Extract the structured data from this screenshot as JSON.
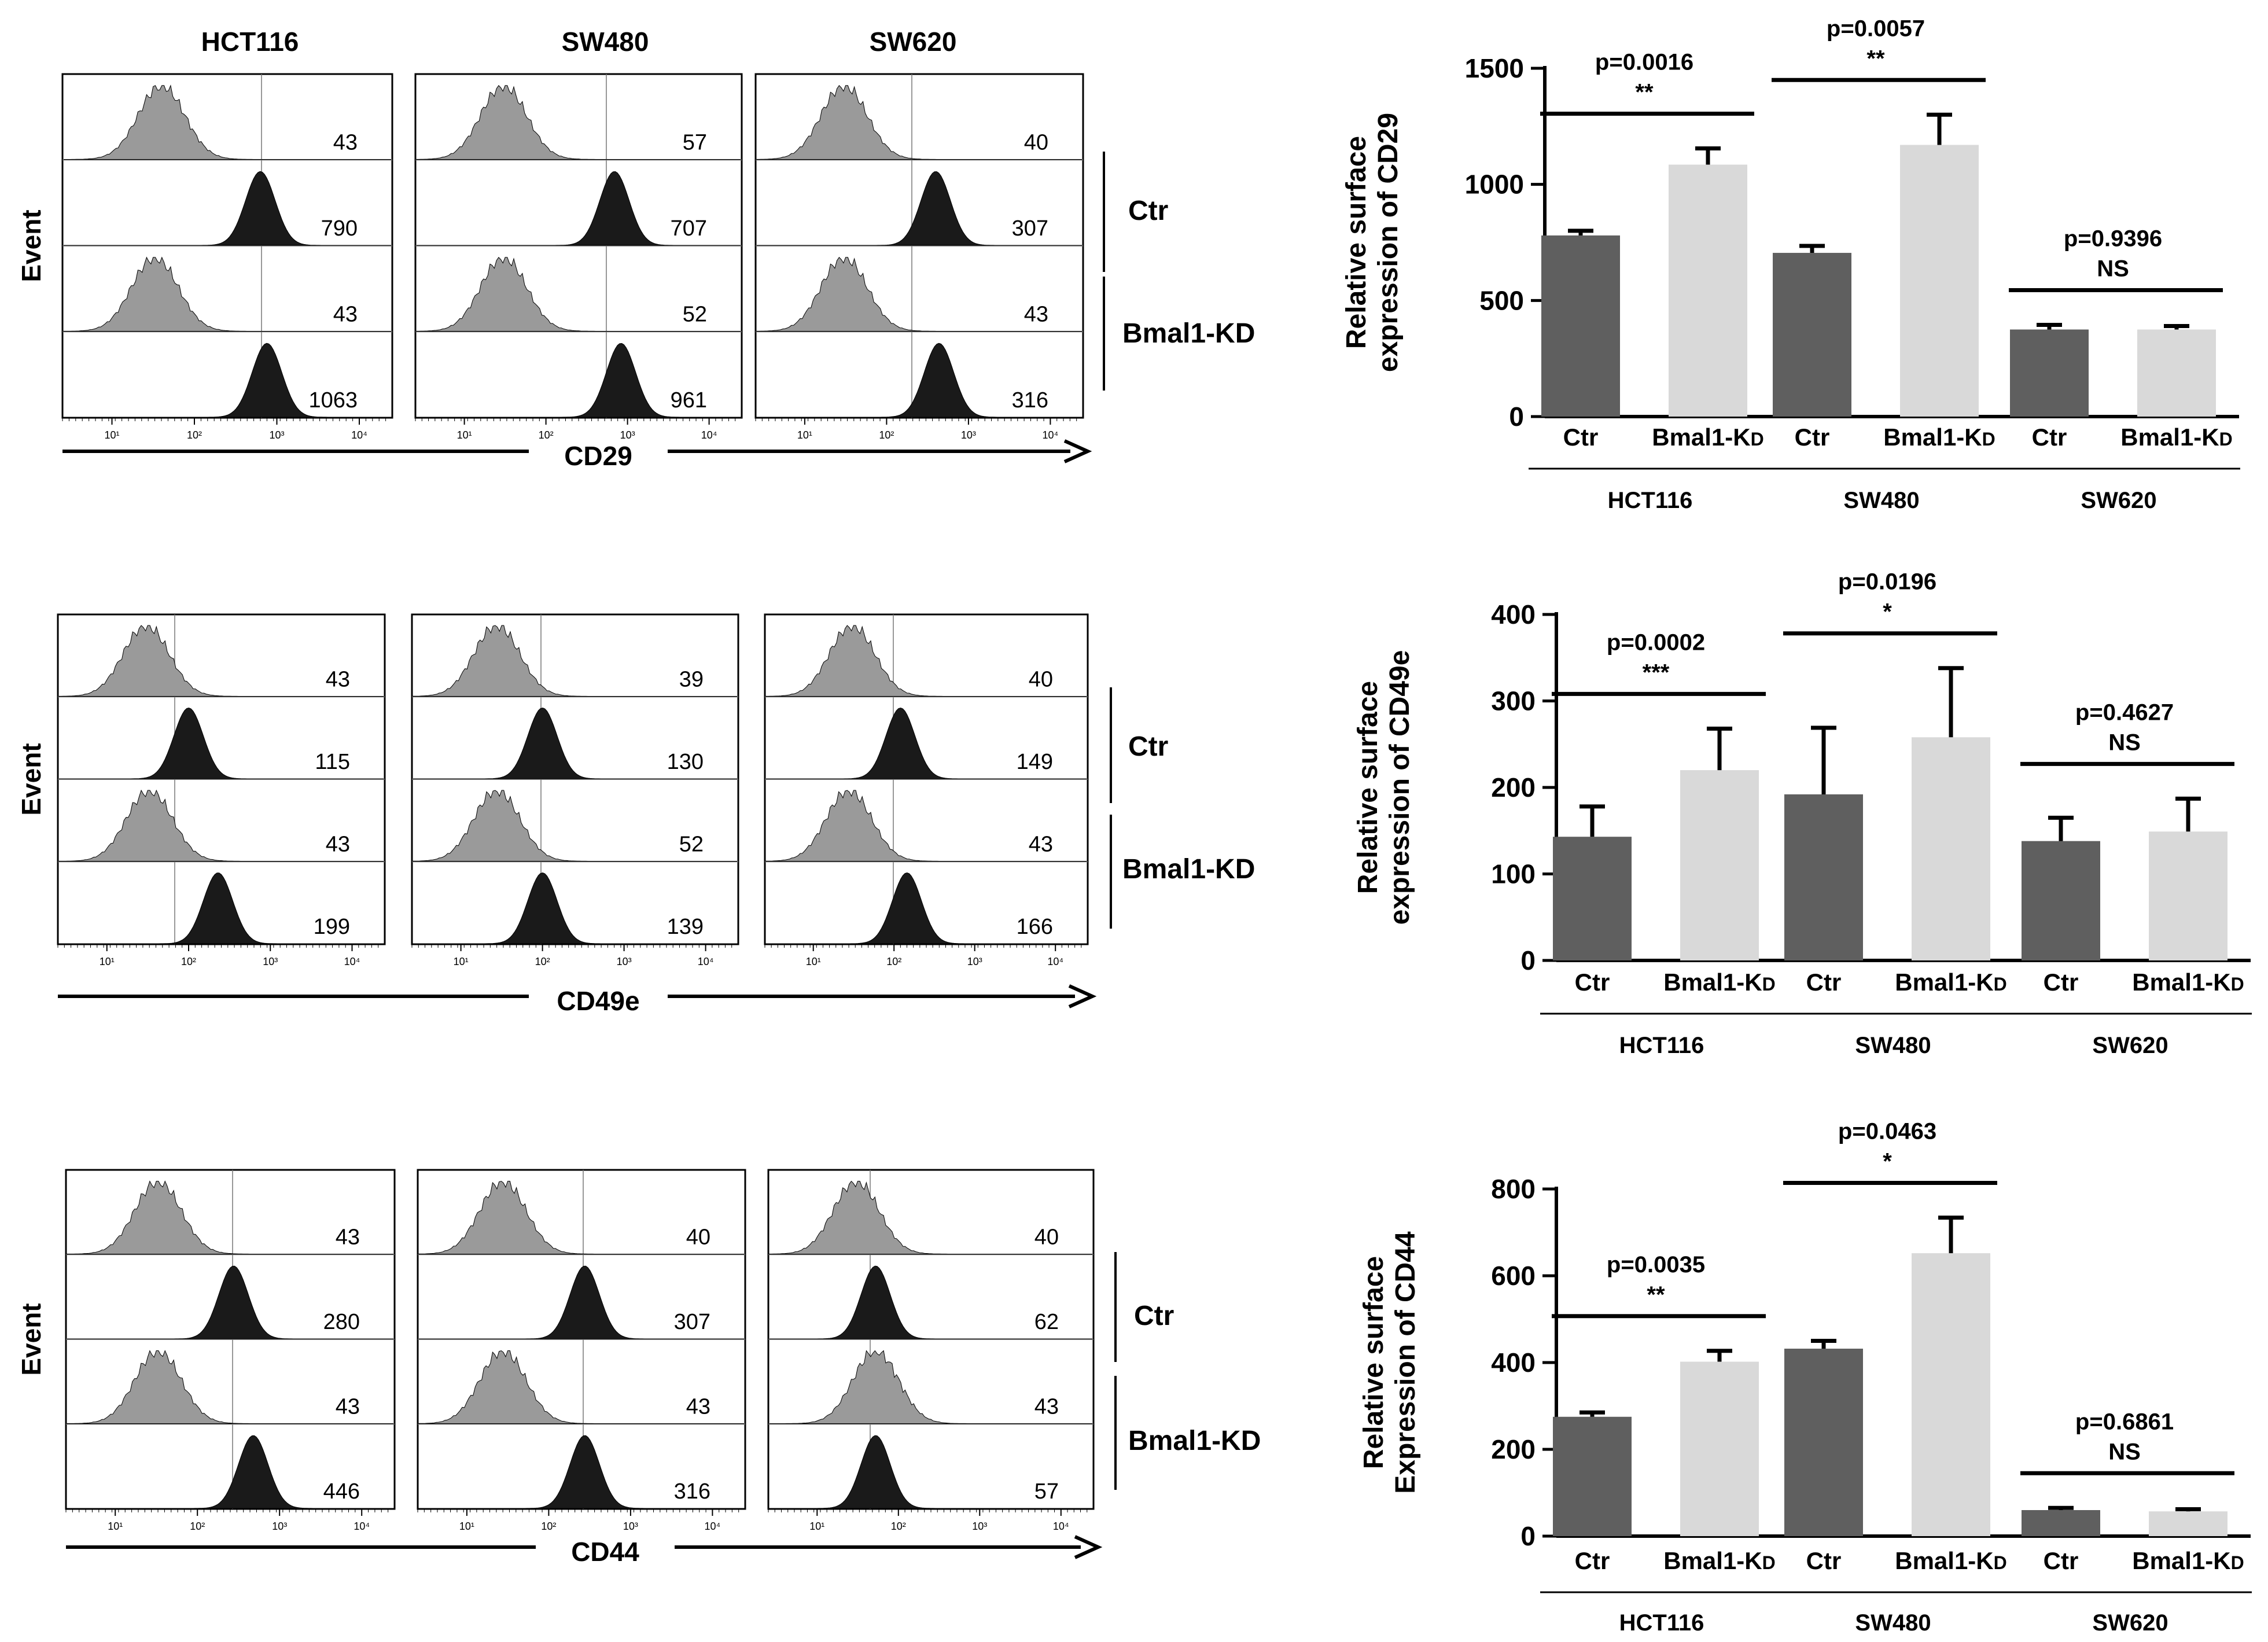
{
  "figure": {
    "cell_lines": [
      "HCT116",
      "SW480",
      "SW620"
    ],
    "event_label": "Event",
    "group_labels": [
      "Ctr",
      "Bmal1-KD"
    ],
    "flow_tick_labels": [
      "10¹",
      "10²",
      "10³",
      "10⁴"
    ]
  },
  "flow_panels": [
    {
      "marker": "CD29",
      "values": [
        [
          "43",
          "790",
          "43",
          "1063"
        ],
        [
          "57",
          "707",
          "52",
          "961"
        ],
        [
          "40",
          "307",
          "43",
          "316"
        ]
      ]
    },
    {
      "marker": "CD49e",
      "values": [
        [
          "43",
          "115",
          "43",
          "199"
        ],
        [
          "39",
          "130",
          "52",
          "139"
        ],
        [
          "40",
          "149",
          "43",
          "166"
        ]
      ]
    },
    {
      "marker": "CD44",
      "values": [
        [
          "43",
          "280",
          "43",
          "446"
        ],
        [
          "40",
          "307",
          "43",
          "316"
        ],
        [
          "40",
          "62",
          "43",
          "57"
        ]
      ]
    }
  ],
  "colors": {
    "ctr_bar": "#5f5f5f",
    "kd_bar": "#d9d9d9",
    "isotype_hist": "#9a9a9a",
    "stained_hist": "#1a1a1a"
  },
  "chart_data": [
    {
      "type": "bar",
      "title": "",
      "ylabel": "Relative surface expression of CD29",
      "ylabel_lines": [
        "Relative surface",
        "expression of CD29"
      ],
      "ylim": [
        0,
        1500
      ],
      "yticks": [
        0,
        500,
        1000,
        1500
      ],
      "categories": [
        "Ctr",
        "Bmal1-KD",
        "Ctr",
        "Bmal1-KD",
        "Ctr",
        "Bmal1-KD"
      ],
      "category_labels": [
        [
          "Ctr"
        ],
        [
          "Bmal1-K",
          "D"
        ],
        [
          "Ctr"
        ],
        [
          "Bmal1-K",
          "D"
        ],
        [
          "Ctr"
        ],
        [
          "Bmal1-K",
          "D"
        ]
      ],
      "groups": [
        "HCT116",
        "SW480",
        "SW620"
      ],
      "values": [
        780,
        1085,
        705,
        1170,
        375,
        375
      ],
      "errors": [
        20,
        70,
        30,
        130,
        20,
        15
      ],
      "significance": [
        {
          "group": "HCT116",
          "p": "p=0.0016",
          "stars": "**"
        },
        {
          "group": "SW480",
          "p": "p=0.0057",
          "stars": "**"
        },
        {
          "group": "SW620",
          "p": "p=0.9396",
          "stars": "NS"
        }
      ]
    },
    {
      "type": "bar",
      "title": "",
      "ylabel": "Relative surface expression of CD49e",
      "ylabel_lines": [
        "Relative surface",
        "expression of CD49e"
      ],
      "ylim": [
        0,
        400
      ],
      "yticks": [
        0,
        100,
        200,
        300,
        400
      ],
      "categories": [
        "Ctr",
        "Bmal1-KD",
        "Ctr",
        "Bmal1-KD",
        "Ctr",
        "Bmal1-KD"
      ],
      "category_labels": [
        [
          "Ctr"
        ],
        [
          "Bmal1-K",
          "D"
        ],
        [
          "Ctr"
        ],
        [
          "Bmal1-K",
          "D"
        ],
        [
          "Ctr"
        ],
        [
          "Bmal1-K",
          "D"
        ]
      ],
      "groups": [
        "HCT116",
        "SW480",
        "SW620"
      ],
      "values": [
        143,
        220,
        192,
        258,
        138,
        149
      ],
      "errors": [
        35,
        48,
        77,
        80,
        27,
        38
      ],
      "significance": [
        {
          "group": "HCT116",
          "p": "p=0.0002",
          "stars": "***"
        },
        {
          "group": "SW480",
          "p": "p=0.0196",
          "stars": "*"
        },
        {
          "group": "SW620",
          "p": "p=0.4627",
          "stars": "NS"
        }
      ]
    },
    {
      "type": "bar",
      "title": "",
      "ylabel": "Relative surface Expression of CD44",
      "ylabel_lines": [
        "Relative surface",
        "Expression of CD44"
      ],
      "ylim": [
        0,
        800
      ],
      "yticks": [
        0,
        200,
        400,
        600,
        800
      ],
      "categories": [
        "Ctr",
        "Bmal1-KD",
        "Ctr",
        "Bmal1-KD",
        "Ctr",
        "Bmal1-KD"
      ],
      "category_labels": [
        [
          "Ctr"
        ],
        [
          "Bmal1-K",
          "D"
        ],
        [
          "Ctr"
        ],
        [
          "Bmal1-K",
          "D"
        ],
        [
          "Ctr"
        ],
        [
          "Bmal1-K",
          "D"
        ]
      ],
      "groups": [
        "HCT116",
        "SW480",
        "SW620"
      ],
      "values": [
        275,
        402,
        432,
        652,
        60,
        57
      ],
      "errors": [
        10,
        25,
        18,
        82,
        5,
        5
      ],
      "significance": [
        {
          "group": "HCT116",
          "p": "p=0.0035",
          "stars": "**"
        },
        {
          "group": "SW480",
          "p": "p=0.0463",
          "stars": "*"
        },
        {
          "group": "SW620",
          "p": "p=0.6861",
          "stars": "NS"
        }
      ]
    }
  ]
}
